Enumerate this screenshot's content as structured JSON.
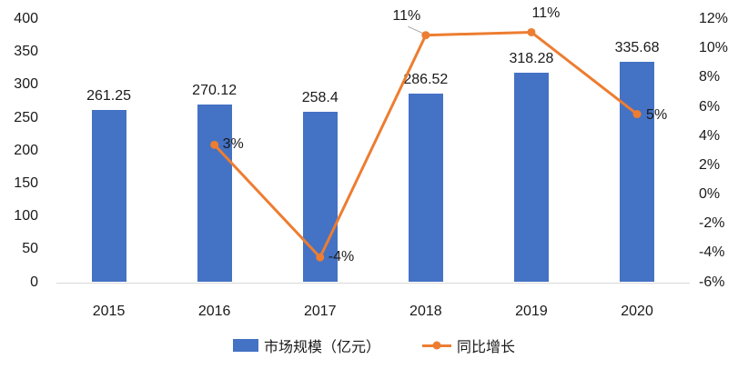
{
  "chart_data": {
    "type": "combo-bar-line",
    "title": "",
    "categories": [
      "2015",
      "2016",
      "2017",
      "2018",
      "2019",
      "2020"
    ],
    "series": [
      {
        "name": "市场规模（亿元）",
        "type": "bar",
        "axis": "left",
        "color": "#4472C4",
        "values": [
          261.25,
          270.12,
          258.4,
          286.52,
          318.28,
          335.68
        ],
        "labels": [
          "261.25",
          "270.12",
          "258.4",
          "286.52",
          "318.28",
          "335.68"
        ]
      },
      {
        "name": "同比增长",
        "type": "line",
        "axis": "right",
        "color": "#ED7D31",
        "values": [
          null,
          3.4,
          -4.3,
          10.9,
          11.1,
          5.5
        ],
        "labels": [
          null,
          "3%",
          "-4%",
          "11%",
          "11%",
          "5%"
        ]
      }
    ],
    "left_axis": {
      "range": [
        0,
        400
      ],
      "step": 50,
      "values": [
        400,
        350,
        300,
        250,
        200,
        150,
        100,
        50,
        0
      ],
      "labels": [
        "400",
        "350",
        "300",
        "250",
        "200",
        "150",
        "100",
        "50",
        "0"
      ]
    },
    "right_axis": {
      "range": [
        -6,
        12
      ],
      "step": 2,
      "values": [
        12,
        10,
        8,
        6,
        4,
        2,
        0,
        -2,
        -4,
        -6
      ],
      "labels": [
        "12%",
        "10%",
        "8%",
        "6%",
        "4%",
        "2%",
        "0%",
        "-2%",
        "-4%",
        "-6%"
      ]
    },
    "grid": false,
    "legend_position": "bottom"
  },
  "legend": {
    "items": [
      {
        "label": "市场规模（亿元）",
        "marker": "rect",
        "color": "#4472C4"
      },
      {
        "label": "同比增长",
        "marker": "line-dot",
        "color": "#ED7D31"
      }
    ]
  },
  "colors": {
    "bar": "#4472C4",
    "line": "#ED7D31",
    "axis_line": "#D9D9D9",
    "leader_line": "#A6A6A6",
    "text": "#1A1A1A",
    "background": "#FFFFFF"
  }
}
